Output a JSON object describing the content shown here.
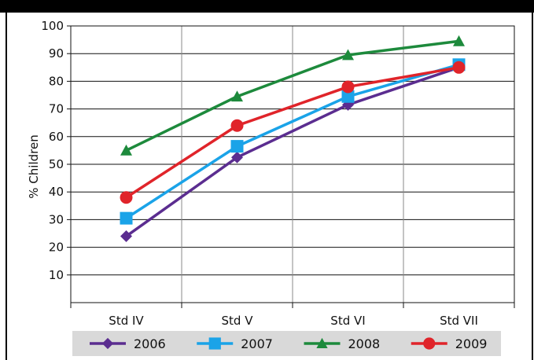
{
  "chart_data": {
    "type": "line",
    "title": "",
    "xlabel": "",
    "ylabel": "% Children",
    "categories": [
      "Std IV",
      "Std V",
      "Std VI",
      "Std VII"
    ],
    "ylim": [
      0,
      100
    ],
    "y_ticks": [
      "10",
      "20",
      "30",
      "40",
      "50",
      "60",
      "70",
      "80",
      "90",
      "100"
    ],
    "y_tick_values": [
      10,
      20,
      30,
      40,
      50,
      60,
      70,
      80,
      90,
      100
    ],
    "grid": true,
    "legend_position": "bottom",
    "series": [
      {
        "name": "2006",
        "values": [
          24,
          52.5,
          71.5,
          85
        ],
        "color": "#5b2d90",
        "marker": "diamond"
      },
      {
        "name": "2007",
        "values": [
          30.5,
          56.5,
          74.5,
          86
        ],
        "color": "#1aa3e8",
        "marker": "square"
      },
      {
        "name": "2008",
        "values": [
          55,
          74.5,
          89.5,
          94.5
        ],
        "color": "#1d8a3c",
        "marker": "triangle"
      },
      {
        "name": "2009",
        "values": [
          38,
          64,
          78,
          85
        ],
        "color": "#e0242a",
        "marker": "circle"
      }
    ]
  }
}
